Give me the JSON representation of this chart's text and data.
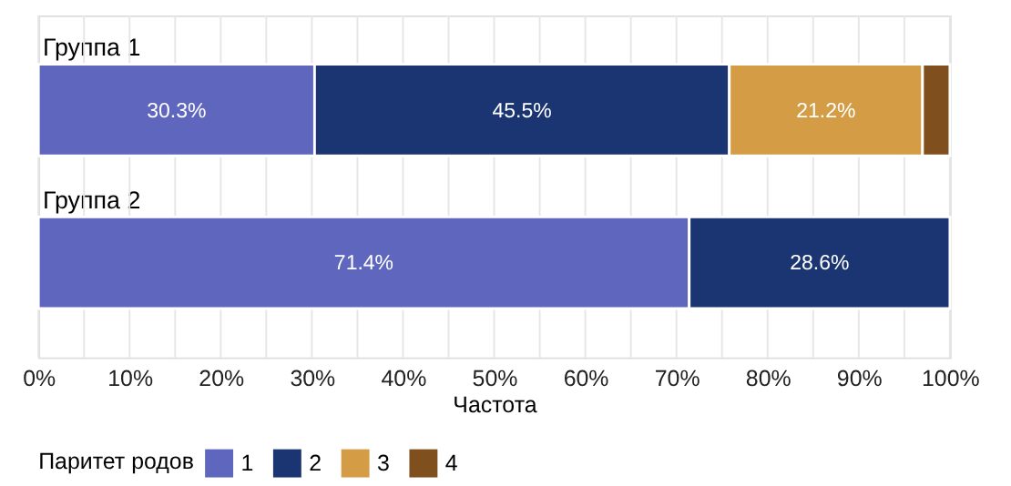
{
  "chart_data": {
    "type": "bar",
    "orientation": "horizontal",
    "stacked": true,
    "categories": [
      "Группа 1",
      "Группа 2"
    ],
    "xlim": [
      0,
      100
    ],
    "xlabel": "Частота",
    "legend_title": "Паритет родов",
    "xticks": [
      {
        "value": 0,
        "label": "0%"
      },
      {
        "value": 5,
        "label": null
      },
      {
        "value": 10,
        "label": "10%"
      },
      {
        "value": 15,
        "label": null
      },
      {
        "value": 20,
        "label": "20%"
      },
      {
        "value": 25,
        "label": null
      },
      {
        "value": 30,
        "label": "30%"
      },
      {
        "value": 35,
        "label": null
      },
      {
        "value": 40,
        "label": "40%"
      },
      {
        "value": 45,
        "label": null
      },
      {
        "value": 50,
        "label": "50%"
      },
      {
        "value": 55,
        "label": null
      },
      {
        "value": 60,
        "label": "60%"
      },
      {
        "value": 65,
        "label": null
      },
      {
        "value": 70,
        "label": "70%"
      },
      {
        "value": 75,
        "label": null
      },
      {
        "value": 80,
        "label": "80%"
      },
      {
        "value": 85,
        "label": null
      },
      {
        "value": 90,
        "label": "90%"
      },
      {
        "value": 95,
        "label": null
      },
      {
        "value": 100,
        "label": "100%"
      }
    ],
    "grid": "x",
    "legend": "bottom",
    "series": [
      {
        "name": "1",
        "color": "#5f66be",
        "values": [
          30.3,
          71.4
        ],
        "value_labels": [
          "30.3%",
          "71.4%"
        ]
      },
      {
        "name": "2",
        "color": "#1a3571",
        "values": [
          45.5,
          28.6
        ],
        "value_labels": [
          "45.5%",
          "28.6%"
        ]
      },
      {
        "name": "3",
        "color": "#d49c45",
        "values": [
          21.2,
          null
        ],
        "value_labels": [
          "21.2%",
          null
        ]
      },
      {
        "name": "4",
        "color": "#7f4f1e",
        "values": [
          3.0,
          null
        ],
        "value_labels": [
          null,
          null
        ]
      }
    ]
  }
}
